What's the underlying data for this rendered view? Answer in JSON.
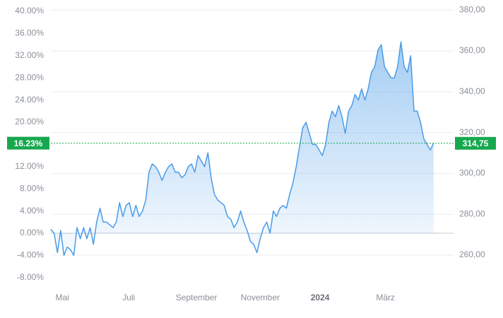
{
  "chart_data": {
    "type": "area",
    "color": "#4a9be8",
    "marker_color": "#17a84f",
    "grid": true,
    "xlim": [
      0,
      123.1
    ],
    "xticks": [
      {
        "value": 3.5,
        "label": "Mai"
      },
      {
        "value": 23.8,
        "label": "Juli"
      },
      {
        "value": 44.5,
        "label": "September"
      },
      {
        "value": 64.0,
        "label": "November"
      },
      {
        "value": 82.3,
        "label": "2024",
        "bold": true
      },
      {
        "value": 102.3,
        "label": "März"
      }
    ],
    "ylim": [
      -9.94,
      41.02
    ],
    "yticks": [
      {
        "value": 40,
        "label": "40.00%"
      },
      {
        "value": 36,
        "label": "36.00%"
      },
      {
        "value": 32,
        "label": "32.00%"
      },
      {
        "value": 28,
        "label": "28.00%"
      },
      {
        "value": 24,
        "label": "24.00%"
      },
      {
        "value": 20,
        "label": "20.00%"
      },
      {
        "value": 12,
        "label": "12.00%"
      },
      {
        "value": 8,
        "label": "8.00%"
      },
      {
        "value": 4,
        "label": "4.00%"
      },
      {
        "value": 0,
        "label": "0.00%"
      },
      {
        "value": -4,
        "label": "-4.00%"
      },
      {
        "value": -8,
        "label": "-8.00%"
      }
    ],
    "y2lim": [
      243.74,
      382.15
    ],
    "y2ticks": [
      {
        "value": 380,
        "label": "380,00"
      },
      {
        "value": 360,
        "label": "360,00"
      },
      {
        "value": 340,
        "label": "340,00"
      },
      {
        "value": 320,
        "label": "320,00"
      },
      {
        "value": 300,
        "label": "300,00"
      },
      {
        "value": 280,
        "label": "280,00"
      },
      {
        "value": 260,
        "label": "260,00"
      }
    ],
    "current": {
      "value": 16.23,
      "label": "16.23%",
      "price": 314.75,
      "price_label": "314,75"
    },
    "values": [
      0.7,
      0,
      -3.5,
      0.5,
      -4,
      -2.5,
      -3,
      -4,
      1,
      -1,
      1,
      -1,
      1,
      -2,
      2,
      4.5,
      2,
      2,
      1.5,
      1,
      2,
      5.5,
      3,
      5,
      5.5,
      3,
      5,
      3,
      4,
      6,
      11,
      12.5,
      12,
      11,
      9.5,
      11,
      12,
      12.5,
      11,
      11,
      10,
      10.5,
      12,
      12.5,
      11,
      14,
      13,
      12,
      14.5,
      10,
      7,
      6,
      5.5,
      5,
      3,
      2.5,
      1,
      2,
      4,
      2,
      0.5,
      -1.5,
      -2,
      -3.5,
      -1,
      1,
      2,
      0,
      4,
      3,
      4.5,
      5,
      4.5,
      7,
      9,
      12,
      15.5,
      19,
      20,
      18,
      16,
      16,
      15,
      14,
      16,
      20,
      22,
      21,
      23,
      21,
      18,
      22,
      23,
      25,
      24,
      26,
      24,
      26,
      29,
      30,
      33,
      34,
      30,
      29,
      28,
      28,
      30,
      34.5,
      30,
      29,
      32,
      22,
      22,
      20,
      17,
      16,
      15,
      16.23
    ]
  }
}
